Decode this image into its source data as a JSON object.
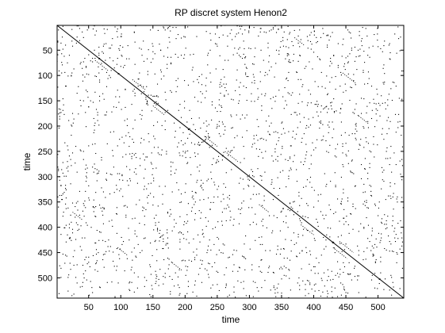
{
  "chart_data": {
    "type": "scatter",
    "title": "RP  discret system Henon2",
    "xlabel": "time",
    "ylabel": "time",
    "xlim": [
      1,
      540
    ],
    "ylim": [
      1,
      540
    ],
    "y_axis_reversed": true,
    "grid": false,
    "legend": "none",
    "x_ticks": [
      50,
      100,
      150,
      200,
      250,
      300,
      350,
      400,
      450,
      500
    ],
    "y_ticks": [
      50,
      100,
      150,
      200,
      250,
      300,
      350,
      400,
      450,
      500
    ],
    "marker_color": "#000000",
    "line_of_identity": {
      "from": [
        1,
        1
      ],
      "to": [
        540,
        540
      ]
    },
    "recurrence_points_note": "",
    "diagonal_segments": [
      {
        "x": [
          60,
          80
        ],
        "y": [
          70,
          90
        ]
      },
      {
        "x": [
          118,
          138
        ],
        "y": [
          108,
          128
        ]
      },
      {
        "x": [
          150,
          168
        ],
        "y": [
          160,
          178
        ]
      },
      {
        "x": [
          230,
          250
        ],
        "y": [
          220,
          240
        ]
      },
      {
        "x": [
          262,
          282
        ],
        "y": [
          250,
          270
        ]
      },
      {
        "x": [
          380,
          400
        ],
        "y": [
          395,
          415
        ]
      },
      {
        "x": [
          430,
          452
        ],
        "y": [
          440,
          462
        ]
      },
      {
        "x": [
          440,
          462
        ],
        "y": [
          428,
          450
        ]
      },
      {
        "x": [
          315,
          330
        ],
        "y": [
          355,
          370
        ]
      },
      {
        "x": [
          95,
          110
        ],
        "y": [
          440,
          455
        ]
      },
      {
        "x": [
          445,
          465
        ],
        "y": [
          95,
          115
        ]
      },
      {
        "x": [
          25,
          40
        ],
        "y": [
          370,
          385
        ]
      },
      {
        "x": [
          370,
          385
        ],
        "y": [
          25,
          40
        ]
      },
      {
        "x": [
          180,
          195
        ],
        "y": [
          470,
          485
        ]
      },
      {
        "x": [
          470,
          485
        ],
        "y": [
          180,
          195
        ]
      }
    ]
  }
}
